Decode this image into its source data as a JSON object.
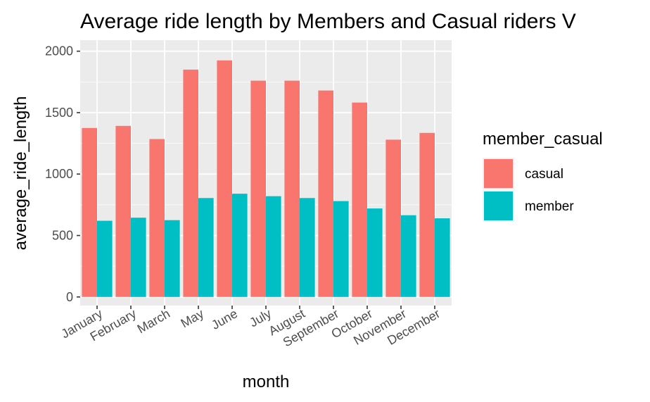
{
  "chart_data": {
    "type": "bar",
    "title": "Average ride length by Members and Casual riders V",
    "xlabel": "month",
    "ylabel": "average_ride_length",
    "categories": [
      "January",
      "February",
      "March",
      "May",
      "June",
      "July",
      "August",
      "September",
      "October",
      "November",
      "December"
    ],
    "series": [
      {
        "name": "casual",
        "color": "#F8766D",
        "values": [
          1375,
          1392,
          1285,
          1850,
          1925,
          1760,
          1760,
          1680,
          1582,
          1280,
          1335
        ]
      },
      {
        "name": "member",
        "color": "#00BFC4",
        "values": [
          620,
          645,
          625,
          805,
          840,
          820,
          805,
          780,
          720,
          665,
          640
        ]
      }
    ],
    "yticks": [
      0,
      500,
      1000,
      1500,
      2000
    ],
    "ylim": [
      -70,
      2090
    ],
    "grid": true,
    "legend": {
      "title": "member_casual",
      "position": "right"
    },
    "panel_background": "#EBEBEB"
  }
}
